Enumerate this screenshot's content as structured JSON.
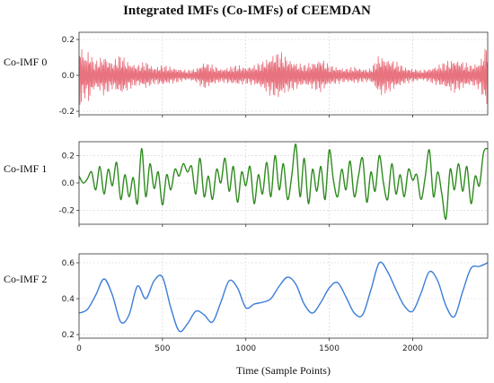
{
  "chart_data": {
    "type": "line",
    "title": "Integrated IMFs (Co-IMFs) of CEEMDAN",
    "xlabel": "Time (Sample Points)",
    "xlim": [
      0,
      2450
    ],
    "xticks": [
      0,
      500,
      1000,
      1500,
      2000
    ],
    "grid": true,
    "panels": [
      {
        "label": "Co-IMF 0",
        "color": "#e8737f",
        "ylim": [
          -0.22,
          0.24
        ],
        "yticks": [
          -0.2,
          0.0,
          0.2
        ],
        "yticklabels": [
          "-0.2",
          "0.0",
          "0.2"
        ],
        "x": [
          0,
          40,
          60,
          80,
          100,
          150,
          200,
          250,
          300,
          350,
          400,
          450,
          500,
          550,
          600,
          650,
          700,
          750,
          800,
          850,
          900,
          950,
          1000,
          1050,
          1100,
          1150,
          1200,
          1250,
          1300,
          1350,
          1400,
          1450,
          1500,
          1550,
          1600,
          1650,
          1700,
          1750,
          1800,
          1850,
          1900,
          1950,
          2000,
          2050,
          2100,
          2150,
          2200,
          2250,
          2300,
          2350,
          2400,
          2450
        ],
        "amplitude": [
          0.2,
          0.12,
          0.16,
          0.1,
          0.08,
          0.12,
          0.08,
          0.12,
          0.08,
          0.06,
          0.08,
          0.05,
          0.06,
          0.05,
          0.04,
          0.03,
          0.04,
          0.08,
          0.06,
          0.04,
          0.05,
          0.06,
          0.05,
          0.06,
          0.08,
          0.12,
          0.14,
          0.1,
          0.08,
          0.06,
          0.08,
          0.1,
          0.06,
          0.05,
          0.04,
          0.05,
          0.04,
          0.04,
          0.12,
          0.1,
          0.08,
          0.05,
          0.04,
          0.03,
          0.04,
          0.06,
          0.08,
          0.1,
          0.08,
          0.06,
          0.08,
          0.2
        ]
      },
      {
        "label": "Co-IMF 1",
        "color": "#2e8b1e",
        "ylim": [
          -0.3,
          0.3
        ],
        "yticks": [
          -0.2,
          0.0,
          0.2
        ],
        "yticklabels": [
          "-0.2",
          "0.0",
          "0.2"
        ],
        "x": [
          0,
          25,
          50,
          75,
          100,
          125,
          150,
          175,
          200,
          225,
          250,
          275,
          300,
          325,
          350,
          375,
          400,
          425,
          450,
          475,
          500,
          525,
          550,
          575,
          600,
          625,
          650,
          675,
          700,
          725,
          750,
          775,
          800,
          825,
          850,
          875,
          900,
          925,
          950,
          975,
          1000,
          1025,
          1050,
          1075,
          1100,
          1125,
          1150,
          1175,
          1200,
          1225,
          1250,
          1275,
          1300,
          1325,
          1350,
          1375,
          1400,
          1425,
          1450,
          1475,
          1500,
          1525,
          1550,
          1575,
          1600,
          1625,
          1650,
          1675,
          1700,
          1725,
          1750,
          1775,
          1800,
          1825,
          1850,
          1875,
          1900,
          1925,
          1950,
          1975,
          2000,
          2025,
          2050,
          2075,
          2100,
          2125,
          2150,
          2175,
          2200,
          2225,
          2250,
          2275,
          2300,
          2325,
          2350,
          2375,
          2400,
          2425,
          2450
        ],
        "y": [
          0.05,
          0.0,
          0.03,
          0.08,
          -0.05,
          0.12,
          -0.08,
          0.1,
          -0.02,
          0.15,
          -0.12,
          0.06,
          -0.1,
          0.04,
          -0.15,
          0.25,
          -0.1,
          0.14,
          -0.04,
          0.08,
          -0.16,
          0.06,
          -0.05,
          0.1,
          0.05,
          0.14,
          0.08,
          0.12,
          -0.08,
          0.18,
          -0.1,
          0.05,
          -0.12,
          0.1,
          0.0,
          0.18,
          -0.06,
          0.12,
          -0.14,
          0.08,
          -0.02,
          0.12,
          -0.15,
          0.06,
          -0.08,
          0.15,
          -0.1,
          0.2,
          -0.05,
          0.14,
          -0.12,
          0.05,
          0.28,
          -0.1,
          0.18,
          -0.15,
          0.1,
          -0.06,
          0.12,
          -0.12,
          0.24,
          0.02,
          -0.1,
          0.1,
          -0.05,
          0.16,
          -0.1,
          0.05,
          0.18,
          -0.14,
          0.08,
          -0.06,
          0.2,
          0.0,
          -0.12,
          0.14,
          -0.08,
          0.06,
          -0.1,
          0.1,
          0.02,
          0.06,
          -0.12,
          0.04,
          0.24,
          -0.1,
          0.08,
          -0.08,
          -0.26,
          0.1,
          -0.05,
          0.14,
          -0.06,
          0.12,
          -0.15,
          0.05,
          -0.02,
          0.22,
          0.25
        ]
      },
      {
        "label": "Co-IMF 2",
        "color": "#3b7dd8",
        "ylim": [
          0.18,
          0.65
        ],
        "yticks": [
          0.2,
          0.4,
          0.6
        ],
        "yticklabels": [
          "0.2",
          "0.4",
          "0.6"
        ],
        "x": [
          0,
          50,
          100,
          150,
          200,
          250,
          300,
          350,
          400,
          450,
          500,
          550,
          600,
          650,
          700,
          750,
          800,
          850,
          900,
          950,
          1000,
          1050,
          1100,
          1150,
          1200,
          1250,
          1300,
          1350,
          1400,
          1450,
          1500,
          1550,
          1600,
          1650,
          1700,
          1750,
          1800,
          1850,
          1900,
          1950,
          2000,
          2050,
          2100,
          2150,
          2200,
          2250,
          2300,
          2350,
          2400,
          2450
        ],
        "y": [
          0.32,
          0.34,
          0.42,
          0.51,
          0.42,
          0.27,
          0.31,
          0.47,
          0.4,
          0.5,
          0.52,
          0.35,
          0.22,
          0.26,
          0.33,
          0.31,
          0.27,
          0.38,
          0.5,
          0.46,
          0.35,
          0.37,
          0.38,
          0.4,
          0.47,
          0.52,
          0.48,
          0.37,
          0.32,
          0.38,
          0.46,
          0.49,
          0.41,
          0.32,
          0.31,
          0.45,
          0.6,
          0.55,
          0.45,
          0.36,
          0.33,
          0.43,
          0.55,
          0.5,
          0.36,
          0.3,
          0.44,
          0.57,
          0.58,
          0.6
        ]
      }
    ]
  }
}
